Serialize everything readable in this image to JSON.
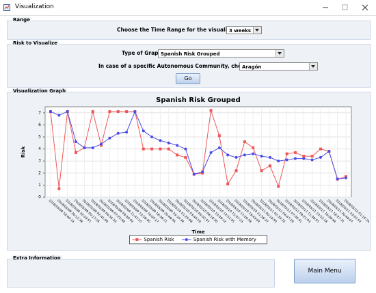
{
  "window": {
    "title": "Visualization"
  },
  "range": {
    "legend": "Range",
    "label": "Choose the Time Range for the visualization",
    "value": "3 weeks"
  },
  "risk": {
    "legend": "Risk to Visualize",
    "type_label": "Type of Graph",
    "type_value": "Spanish Risk Grouped",
    "community_label": "In case of a specific Autonomous Community, choose one:",
    "community_value": "Aragón",
    "button": "Go"
  },
  "graph": {
    "legend": "Visualization Graph"
  },
  "chart_data": {
    "type": "line",
    "title": "Spanish Risk Grouped",
    "xlabel": "Time",
    "ylabel": "Risk",
    "categories": [
      "2018/05/08 18:40:14",
      "2018/05/08 20:12:38",
      "2018/05/08 22:03:51",
      "2018/05/09 00:17:26",
      "2018/05/09 02:41:09",
      "2018/05/09 04:55:33",
      "2018/05/09 07:22:48",
      "2018/05/09 09:30:02",
      "2018/05/09 11:47:15",
      "2018/05/09 13:58:40",
      "2018/05/09 16:05:27",
      "2018/05/09 18:36:11",
      "2018/05/09 20:49:56",
      "2018/05/09 23:10:34",
      "2018/05/10 01:25:08",
      "2018/05/10 03:44:19",
      "2018/05/10 06:02:47",
      "2018/05/10 08:18:30",
      "2018/05/10 10:39:12",
      "2018/05/10 12:51:45",
      "2018/05/10 15:07:23",
      "2018/05/10 17:26:58",
      "2018/05/10 19:43:04",
      "2018/05/10 21:58:37",
      "2018/05/11 00:14:50",
      "2018/05/11 02:33:16",
      "2018/05/11 04:47:29",
      "2018/05/11 07:05:41",
      "2018/05/11 09:21:03",
      "2018/05/11 11:38:55",
      "2018/05/11 13:52:18",
      "2018/05/11 16:09:44",
      "2018/05/11 18:27:31",
      "2018/05/11 20:44:07",
      "2018/05/11 23:01:52",
      "2018/05/12 01:15:24"
    ],
    "series": [
      {
        "name": "Spanish Risk",
        "color": "#f05555",
        "marker": "square",
        "values": [
          7.1,
          0.7,
          7.1,
          3.7,
          4.1,
          7.1,
          4.3,
          7.1,
          7.1,
          7.1,
          7.1,
          4.0,
          4.0,
          4.0,
          4.0,
          3.5,
          3.3,
          1.9,
          2.0,
          7.2,
          5.1,
          1.1,
          2.2,
          4.6,
          4.1,
          2.2,
          2.6,
          0.9,
          3.6,
          3.7,
          3.4,
          3.4,
          4.0,
          3.8,
          1.5,
          1.7
        ]
      },
      {
        "name": "Spanish Risk with Memory",
        "color": "#4a4ae6",
        "marker": "circle",
        "values": [
          7.1,
          6.8,
          7.1,
          4.6,
          4.1,
          4.1,
          4.4,
          4.9,
          5.3,
          5.4,
          7.1,
          5.5,
          5.0,
          4.7,
          4.5,
          4.3,
          4.0,
          1.9,
          2.1,
          3.7,
          4.1,
          3.5,
          3.3,
          3.5,
          3.6,
          3.4,
          3.3,
          3.0,
          3.1,
          3.2,
          3.2,
          3.1,
          3.3,
          3.8,
          1.5,
          1.6
        ]
      }
    ],
    "ylim": [
      0,
      7.5
    ],
    "yticks": [
      0,
      1,
      2,
      3,
      4,
      5,
      6,
      7
    ],
    "grid": true,
    "legend": "bottom"
  },
  "extra": {
    "legend": "Extra Information"
  },
  "main_menu": "Main Menu"
}
